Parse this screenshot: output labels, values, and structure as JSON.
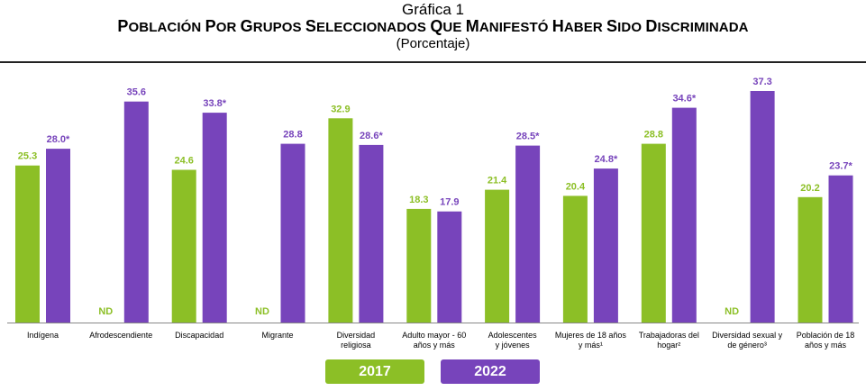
{
  "figure_number": "Gráfica 1",
  "title": "Población por grupos seleccionados que manifestó haber sido discriminada",
  "subtitle": "(Porcentaje)",
  "colors": {
    "2017": "#8cbf26",
    "2022": "#7744bb"
  },
  "legend": [
    {
      "label": "2017",
      "color": "#8cbf26"
    },
    {
      "label": "2022",
      "color": "#7744bb"
    }
  ],
  "chart_data": {
    "type": "bar",
    "categories": [
      "Indígena",
      "Afrodescendiente",
      "Discapacidad",
      "Migrante",
      "Diversidad religiosa",
      "Adulto mayor - 60 años y más",
      "Adolescentes y jóvenes",
      "Mujeres de 18 años y más¹",
      "Trabajadoras del hogar²",
      "Diversidad sexual y de género³",
      "Población de 18 años y más"
    ],
    "category_lines": [
      [
        "Indígena"
      ],
      [
        "Afrodescendiente"
      ],
      [
        "Discapacidad"
      ],
      [
        "Migrante"
      ],
      [
        "Diversidad",
        "religiosa"
      ],
      [
        "Adulto mayor - 60",
        "años y más"
      ],
      [
        "Adolescentes",
        "y jóvenes"
      ],
      [
        "Mujeres de 18 años",
        "y más¹"
      ],
      [
        "Trabajadoras del",
        "hogar²"
      ],
      [
        "Diversidad sexual y",
        "de género³"
      ],
      [
        "Población de 18",
        "años y más"
      ]
    ],
    "series": [
      {
        "name": "2017",
        "values": [
          25.3,
          null,
          24.6,
          null,
          32.9,
          18.3,
          21.4,
          20.4,
          28.8,
          null,
          20.2
        ],
        "labels": [
          "25.3",
          "ND",
          "24.6",
          "ND",
          "32.9",
          "18.3",
          "21.4",
          "20.4",
          "28.8",
          "ND",
          "20.2"
        ]
      },
      {
        "name": "2022",
        "values": [
          28.0,
          35.6,
          33.8,
          28.8,
          28.6,
          17.9,
          28.5,
          24.8,
          34.6,
          37.3,
          23.7
        ],
        "labels": [
          "28.0*",
          "35.6",
          "33.8*",
          "28.8",
          "28.6*",
          "17.9",
          "28.5*",
          "24.8*",
          "34.6*",
          "37.3",
          "23.7*"
        ]
      }
    ],
    "ylim": [
      0,
      37.3
    ],
    "grid": false,
    "legend_position": "bottom"
  }
}
